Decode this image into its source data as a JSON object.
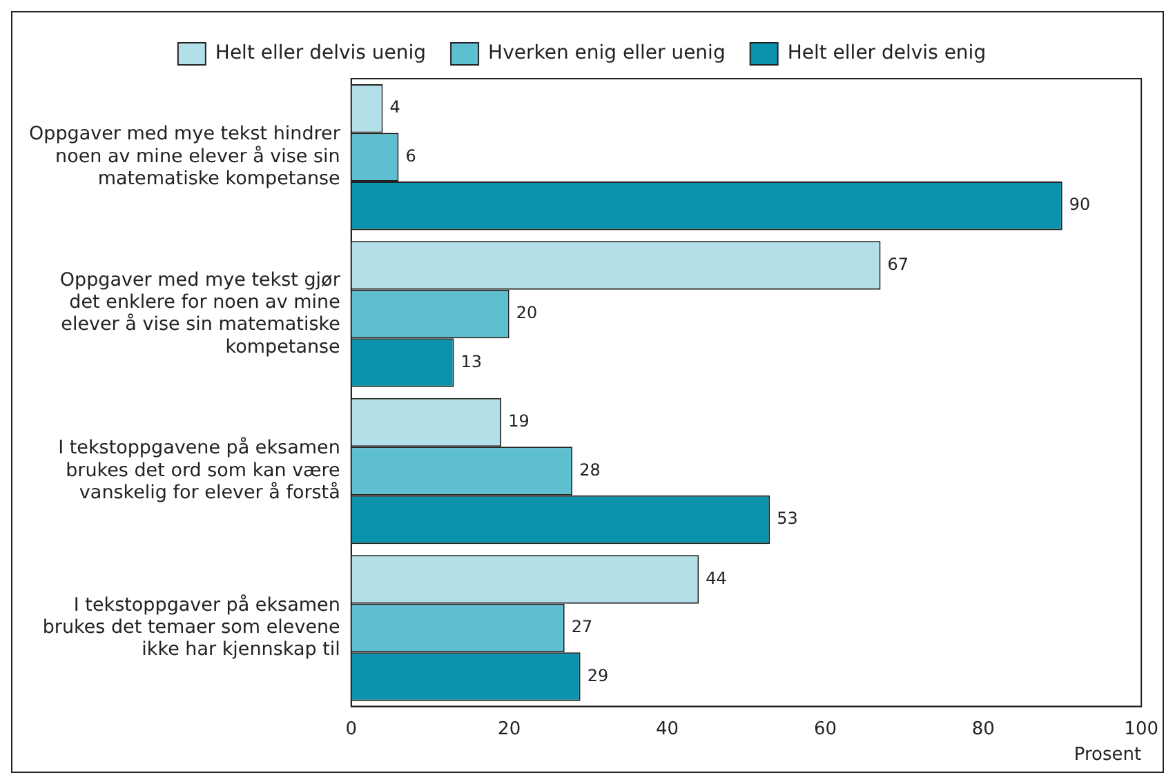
{
  "chart_data": {
    "type": "bar",
    "orientation": "horizontal",
    "categories": [
      "Oppgaver med mye tekst hindrer noen av mine elever å vise sin matematiske kompetanse",
      "Oppgaver med mye tekst gjør det enklere for noen av mine elever å vise sin matematiske kompetanse",
      "I tekstoppgavene på eksamen brukes det ord som kan være vanskelig for elever å forstå",
      "I tekstoppgaver på eksamen brukes det temaer som elevene ikke har kjennskap til"
    ],
    "series": [
      {
        "name": "Helt eller delvis uenig",
        "color": "#b3e0e8",
        "values": [
          4,
          67,
          19,
          44
        ]
      },
      {
        "name": "Hverken enig eller uenig",
        "color": "#5dbfcf",
        "values": [
          6,
          20,
          28,
          27
        ]
      },
      {
        "name": "Helt eller delvis enig",
        "color": "#0b93ad",
        "values": [
          90,
          13,
          53,
          29
        ]
      }
    ],
    "xlim": [
      0,
      100
    ],
    "xticks": [
      0,
      20,
      40,
      60,
      80,
      100
    ],
    "xlabel": "Prosent",
    "data_labels": true,
    "legend": "top",
    "grid": false
  }
}
